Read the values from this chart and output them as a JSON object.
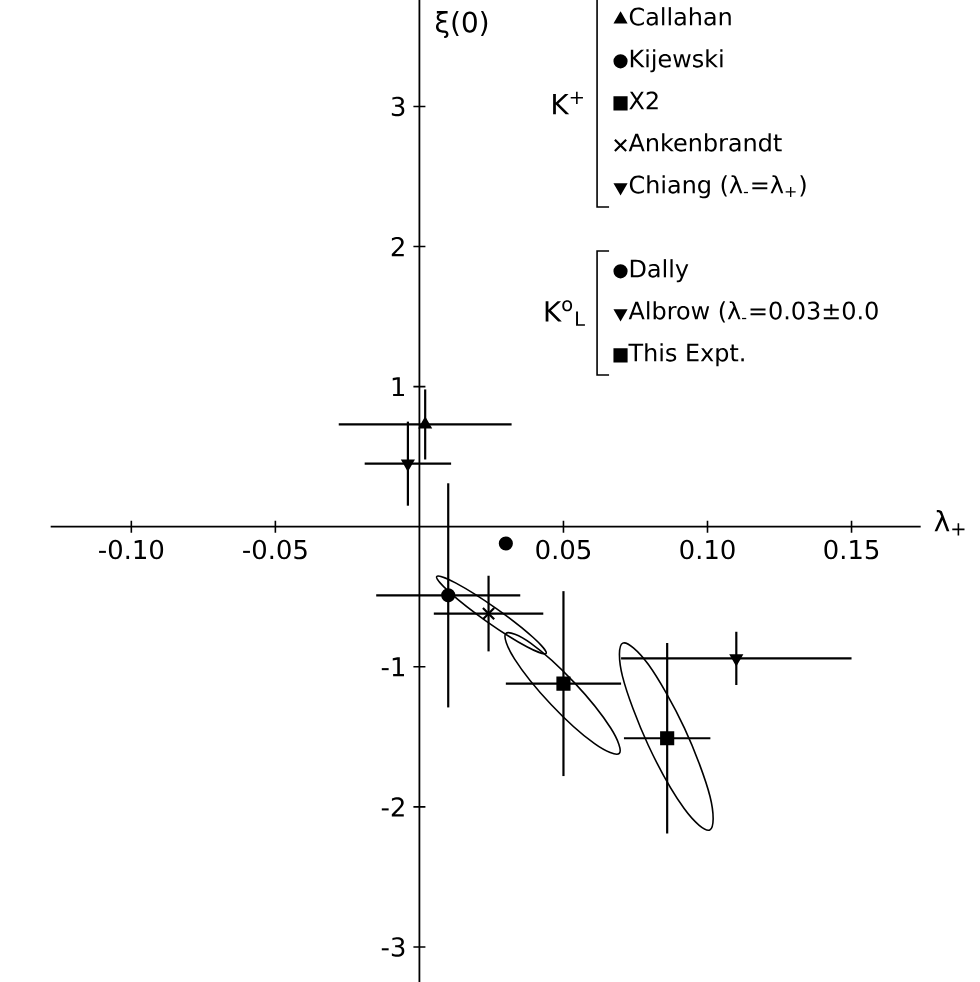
{
  "chart_data": {
    "type": "scatter",
    "xlabel": "λ$_{+}$",
    "ylabel": "ξ(0)",
    "xlim": [
      -0.128,
      0.174
    ],
    "ylim": [
      -3.25,
      3.76
    ],
    "xticks": [
      {
        "value": -0.1,
        "label": "-0.10"
      },
      {
        "value": -0.05,
        "label": "-0.05"
      },
      {
        "value": 0.05,
        "label": "0.05"
      },
      {
        "value": 0.1,
        "label": "0.10"
      },
      {
        "value": 0.15,
        "label": "0.15"
      }
    ],
    "yticks": [
      -3,
      -2,
      -1,
      1,
      2,
      3
    ],
    "legend": "top right",
    "grid": false,
    "annotations": [
      "K$^{+}$",
      "K$^{o}$$_{L}$"
    ],
    "series": [
      {
        "name": "Callahan",
        "color": "#000000",
        "marker": "triangle",
        "x": [
          0.002
        ],
        "values": [
          0.73
        ],
        "xerrors": [
          0.03
        ],
        "errors": [
          0.25
        ]
      },
      {
        "name": "Kijewski",
        "color": "#000000",
        "marker": "circle",
        "x": [
          0.01
        ],
        "values": [
          -0.49
        ],
        "xerrors": [
          0.025
        ],
        "errors": [
          0.8
        ]
      },
      {
        "name": "X2",
        "color": "#000000",
        "marker": "square",
        "x": [
          0.05
        ],
        "values": [
          -1.12
        ],
        "xerrors": [
          0.02
        ],
        "errors": [
          0.66
        ]
      },
      {
        "name": "Ankenbrandt",
        "color": "#000000",
        "marker": "cross",
        "x": [
          0.024
        ],
        "values": [
          -0.62
        ],
        "xerrors": [
          0.019
        ],
        "errors": [
          0.27
        ]
      },
      {
        "name": "Chiang (λ$_{-}$=λ$_{+}$)",
        "color": "#000000",
        "marker": "triangle-down",
        "x": [
          -0.004
        ],
        "values": [
          0.45
        ],
        "xerrors": [
          0.015
        ],
        "errors": [
          0.3
        ]
      },
      {
        "name": "Dally",
        "color": "#000000",
        "marker": "circle",
        "x": [
          0.03
        ],
        "values": [
          -0.12
        ]
      },
      {
        "name": "Albrow (λ$_{-}$=0.03±0.0",
        "color": "#000000",
        "marker": "triangle-down",
        "x": [
          0.11
        ],
        "values": [
          -0.94
        ],
        "xerrors": [
          0.04
        ],
        "errors": [
          0.19
        ]
      },
      {
        "name": "This Expt.",
        "color": "#000000",
        "marker": "square",
        "x": [
          0.086
        ],
        "values": [
          -1.51
        ],
        "xerrors": [
          0.015
        ],
        "errors": [
          0.68
        ]
      }
    ]
  }
}
